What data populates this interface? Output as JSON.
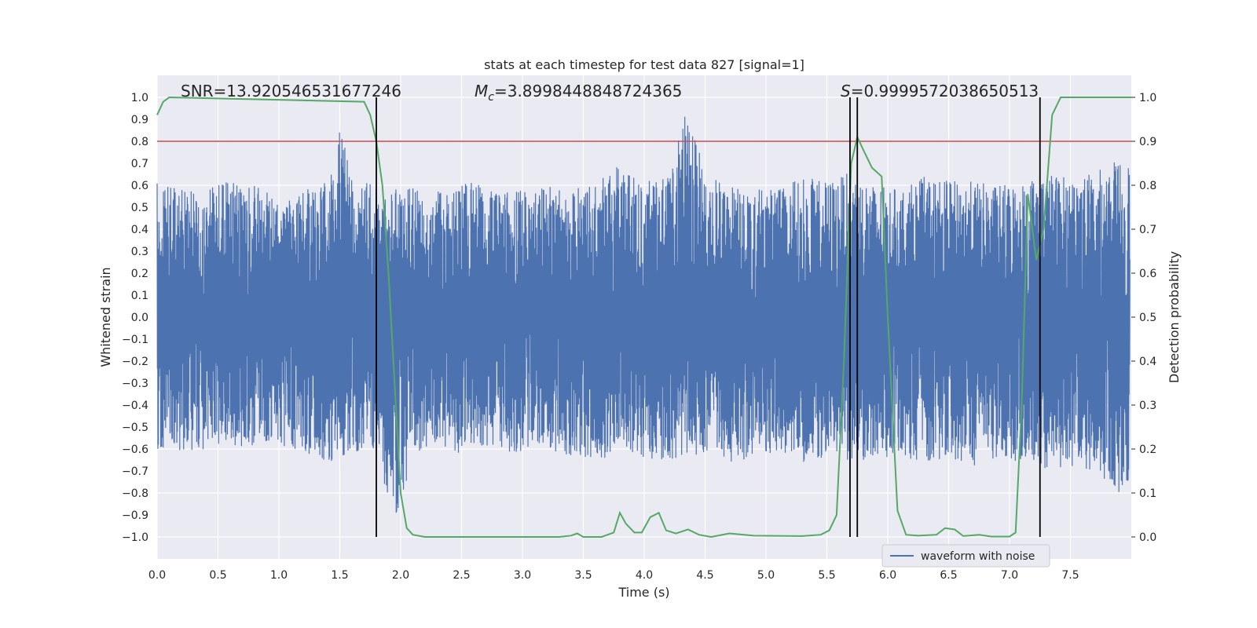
{
  "chart_data": {
    "type": "line",
    "title": "stats at each timestep for test data 827 [signal=1]",
    "xlabel": "Time (s)",
    "ylabel_left": "Whitened strain",
    "ylabel_right": "Detection probability",
    "xlim": [
      0.0,
      8.0
    ],
    "ylim_left": [
      -1.1,
      1.1
    ],
    "ylim_right": [
      -0.05,
      1.05
    ],
    "grid": true,
    "x_ticks": [
      "0.0",
      "0.5",
      "1.0",
      "1.5",
      "2.0",
      "2.5",
      "3.0",
      "3.5",
      "4.0",
      "4.5",
      "5.0",
      "5.5",
      "6.0",
      "6.5",
      "7.0",
      "7.5"
    ],
    "y_left_ticks": [
      "1.0",
      "0.9",
      "0.8",
      "0.7",
      "0.6",
      "0.5",
      "0.4",
      "0.3",
      "0.2",
      "0.1",
      "0.0",
      "−0.1",
      "−0.2",
      "−0.3",
      "−0.4",
      "−0.5",
      "−0.6",
      "−0.7",
      "−0.8",
      "−0.9",
      "−1.0"
    ],
    "y_left_tick_values": [
      1.0,
      0.9,
      0.8,
      0.7,
      0.6,
      0.5,
      0.4,
      0.3,
      0.2,
      0.1,
      0.0,
      -0.1,
      -0.2,
      -0.3,
      -0.4,
      -0.5,
      -0.6,
      -0.7,
      -0.8,
      -0.9,
      -1.0
    ],
    "y_right_ticks": [
      "1.0",
      "0.9",
      "0.8",
      "0.7",
      "0.6",
      "0.5",
      "0.4",
      "0.3",
      "0.2",
      "0.1",
      "0.0"
    ],
    "y_right_tick_values": [
      1.0,
      0.9,
      0.8,
      0.7,
      0.6,
      0.5,
      0.4,
      0.3,
      0.2,
      0.1,
      0.0
    ],
    "annotations": {
      "snr": "SNR=13.920546531677246",
      "mc_symbol": "M",
      "mc_subscript": "c",
      "mc_value": "=3.8998448848724365",
      "s_symbol": "S",
      "s_value": "=0.9999572038650513"
    },
    "legend": {
      "label": "waveform with noise",
      "placement": "lower-right"
    },
    "threshold_line": {
      "y": 0.9,
      "axis": "right",
      "color": "#c44e52"
    },
    "vertical_lines_x": [
      1.8,
      5.69,
      5.75,
      7.25
    ],
    "waveform": {
      "name": "waveform with noise",
      "color": "#4c72b0",
      "envelope_upper": [
        [
          0.0,
          0.62
        ],
        [
          0.2,
          0.6
        ],
        [
          0.4,
          0.58
        ],
        [
          0.6,
          0.62
        ],
        [
          0.8,
          0.6
        ],
        [
          1.0,
          0.56
        ],
        [
          1.2,
          0.58
        ],
        [
          1.4,
          0.62
        ],
        [
          1.5,
          0.9
        ],
        [
          1.6,
          0.66
        ],
        [
          1.8,
          0.6
        ],
        [
          2.0,
          0.58
        ],
        [
          2.2,
          0.6
        ],
        [
          2.4,
          0.58
        ],
        [
          2.6,
          0.62
        ],
        [
          2.8,
          0.56
        ],
        [
          3.0,
          0.58
        ],
        [
          3.2,
          0.6
        ],
        [
          3.4,
          0.58
        ],
        [
          3.6,
          0.62
        ],
        [
          3.8,
          0.7
        ],
        [
          4.0,
          0.62
        ],
        [
          4.2,
          0.64
        ],
        [
          4.35,
          0.97
        ],
        [
          4.5,
          0.66
        ],
        [
          4.7,
          0.6
        ],
        [
          4.9,
          0.58
        ],
        [
          5.1,
          0.6
        ],
        [
          5.3,
          0.64
        ],
        [
          5.5,
          0.62
        ],
        [
          5.7,
          0.66
        ],
        [
          5.9,
          0.6
        ],
        [
          6.1,
          0.58
        ],
        [
          6.3,
          0.64
        ],
        [
          6.5,
          0.62
        ],
        [
          6.7,
          0.62
        ],
        [
          6.9,
          0.6
        ],
        [
          7.1,
          0.62
        ],
        [
          7.3,
          0.66
        ],
        [
          7.5,
          0.64
        ],
        [
          7.7,
          0.66
        ],
        [
          7.9,
          0.72
        ],
        [
          8.0,
          0.7
        ]
      ],
      "envelope_lower": [
        [
          0.0,
          -0.6
        ],
        [
          0.2,
          -0.62
        ],
        [
          0.4,
          -0.6
        ],
        [
          0.6,
          -0.58
        ],
        [
          0.8,
          -0.6
        ],
        [
          1.0,
          -0.58
        ],
        [
          1.2,
          -0.62
        ],
        [
          1.4,
          -0.66
        ],
        [
          1.6,
          -0.62
        ],
        [
          1.8,
          -0.6
        ],
        [
          1.95,
          -0.98
        ],
        [
          2.1,
          -0.62
        ],
        [
          2.3,
          -0.6
        ],
        [
          2.5,
          -0.62
        ],
        [
          2.7,
          -0.6
        ],
        [
          2.9,
          -0.62
        ],
        [
          3.1,
          -0.6
        ],
        [
          3.3,
          -0.62
        ],
        [
          3.5,
          -0.66
        ],
        [
          3.7,
          -0.64
        ],
        [
          3.9,
          -0.62
        ],
        [
          4.1,
          -0.66
        ],
        [
          4.3,
          -0.64
        ],
        [
          4.5,
          -0.62
        ],
        [
          4.7,
          -0.66
        ],
        [
          4.9,
          -0.64
        ],
        [
          5.1,
          -0.62
        ],
        [
          5.3,
          -0.66
        ],
        [
          5.5,
          -0.64
        ],
        [
          5.7,
          -0.66
        ],
        [
          5.9,
          -0.64
        ],
        [
          6.1,
          -0.64
        ],
        [
          6.3,
          -0.66
        ],
        [
          6.5,
          -0.64
        ],
        [
          6.7,
          -0.68
        ],
        [
          6.9,
          -0.64
        ],
        [
          7.1,
          -0.66
        ],
        [
          7.3,
          -0.7
        ],
        [
          7.5,
          -0.68
        ],
        [
          7.7,
          -0.7
        ],
        [
          7.9,
          -0.8
        ],
        [
          8.0,
          -0.78
        ]
      ]
    },
    "detection_probability": {
      "color": "#55a868",
      "axis": "right",
      "points": [
        [
          0.0,
          0.96
        ],
        [
          0.05,
          0.99
        ],
        [
          0.1,
          1.0
        ],
        [
          1.7,
          0.99
        ],
        [
          1.75,
          0.96
        ],
        [
          1.8,
          0.9
        ],
        [
          1.85,
          0.8
        ],
        [
          1.9,
          0.6
        ],
        [
          1.95,
          0.35
        ],
        [
          2.0,
          0.1
        ],
        [
          2.05,
          0.02
        ],
        [
          2.1,
          0.005
        ],
        [
          2.2,
          0.0
        ],
        [
          3.3,
          0.0
        ],
        [
          3.4,
          0.003
        ],
        [
          3.45,
          0.008
        ],
        [
          3.5,
          0.0
        ],
        [
          3.65,
          0.0
        ],
        [
          3.75,
          0.01
        ],
        [
          3.8,
          0.055
        ],
        [
          3.85,
          0.03
        ],
        [
          3.92,
          0.01
        ],
        [
          3.98,
          0.01
        ],
        [
          4.05,
          0.045
        ],
        [
          4.12,
          0.055
        ],
        [
          4.18,
          0.015
        ],
        [
          4.26,
          0.008
        ],
        [
          4.36,
          0.017
        ],
        [
          4.45,
          0.005
        ],
        [
          4.55,
          0.0
        ],
        [
          4.7,
          0.008
        ],
        [
          4.9,
          0.003
        ],
        [
          5.3,
          0.002
        ],
        [
          5.45,
          0.005
        ],
        [
          5.52,
          0.015
        ],
        [
          5.58,
          0.05
        ],
        [
          5.64,
          0.4
        ],
        [
          5.7,
          0.85
        ],
        [
          5.75,
          0.91
        ],
        [
          5.8,
          0.88
        ],
        [
          5.87,
          0.84
        ],
        [
          5.95,
          0.82
        ],
        [
          6.0,
          0.5
        ],
        [
          6.08,
          0.06
        ],
        [
          6.15,
          0.005
        ],
        [
          6.25,
          0.003
        ],
        [
          6.4,
          0.005
        ],
        [
          6.47,
          0.02
        ],
        [
          6.55,
          0.017
        ],
        [
          6.62,
          0.002
        ],
        [
          6.75,
          0.005
        ],
        [
          6.85,
          0.001
        ],
        [
          7.0,
          0.001
        ],
        [
          7.05,
          0.01
        ],
        [
          7.1,
          0.3
        ],
        [
          7.15,
          0.78
        ],
        [
          7.22,
          0.63
        ],
        [
          7.28,
          0.7
        ],
        [
          7.35,
          0.96
        ],
        [
          7.42,
          1.0
        ],
        [
          7.5,
          1.0
        ],
        [
          8.0,
          1.0
        ]
      ]
    }
  }
}
